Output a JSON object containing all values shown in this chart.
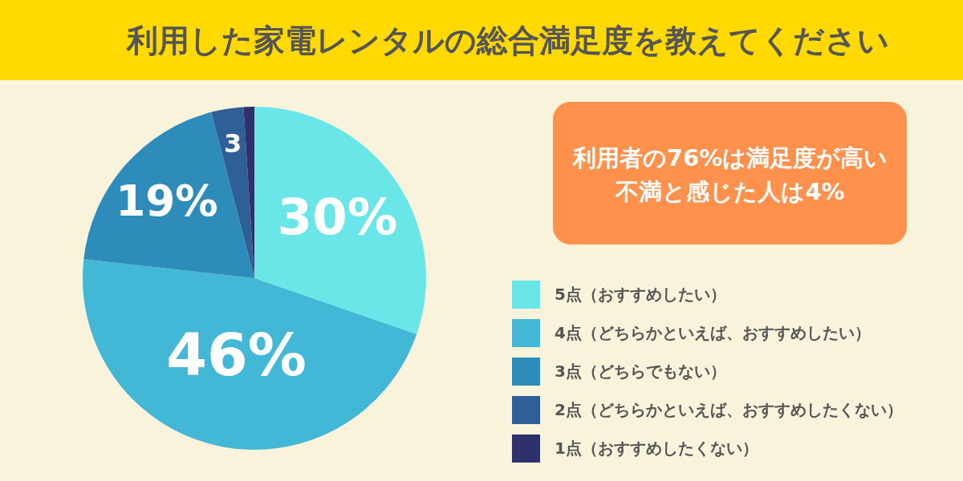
{
  "chart_data": {
    "type": "pie",
    "title": "利用した家電レンタルの総合満足度を教えてください",
    "categories": [
      "5点（おすすめしたい）",
      "4点（どちらかといえば、おすすめしたい）",
      "3点（どちらでもない）",
      "2点（どちらかといえば、おすすめしたくない）",
      "1点（おすすめしたくない）"
    ],
    "values": [
      30,
      46,
      19,
      3,
      1
    ],
    "colors": [
      "#6ae6e8",
      "#42b8d6",
      "#2e8cba",
      "#2e5f97",
      "#2e316a"
    ],
    "value_labels": [
      "30%",
      "46%",
      "19%",
      "3",
      null
    ],
    "legend": "bottom right",
    "annotations": [
      "利用者の76%は満足度が高い",
      "不満と感じた人は4%"
    ]
  }
}
